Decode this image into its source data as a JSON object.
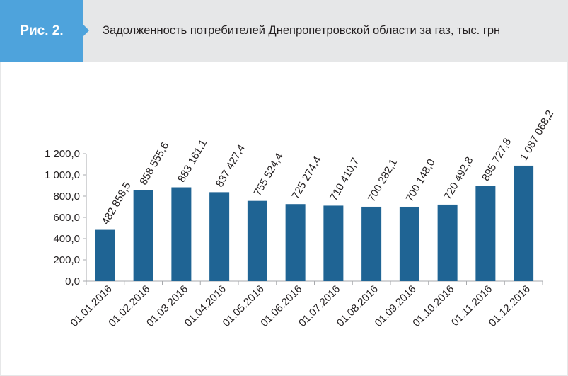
{
  "header": {
    "badge": "Рис. 2.",
    "title": "Задолженность потребителей Днепропетровской области за газ, тыс. грн"
  },
  "colors": {
    "badge": "#4ea3dc",
    "header_bg": "#e6e7e8",
    "bar": "#1f6494",
    "axis": "#a7a9ac",
    "text": "#231f20"
  },
  "chart_data": {
    "type": "bar",
    "title": "Задолженность потребителей Днепропетровской области за газ, тыс. грн",
    "xlabel": "",
    "ylabel": "",
    "ylim": [
      0,
      1200
    ],
    "yticks": [
      0,
      200,
      400,
      600,
      800,
      1000,
      1200
    ],
    "ytick_labels": [
      "0,0",
      "200,0",
      "400,0",
      "600,0",
      "800,0",
      "1 000,0",
      "1 200,0"
    ],
    "categories": [
      "01.01.2016",
      "01.02.2016",
      "01.03.2016",
      "01.04.2016",
      "01.05.2016",
      "01.06.2016",
      "01.07.2016",
      "01.08.2016",
      "01.09.2016",
      "01.10.2016",
      "01.11.2016",
      "01.12.2016"
    ],
    "values": [
      482.8585,
      858.5556,
      883.1611,
      837.4274,
      755.5244,
      725.2744,
      710.4107,
      700.2821,
      700.148,
      720.4928,
      895.7278,
      1087.0682
    ],
    "labels": [
      "482 858,5",
      "858 555,6",
      "883 161,1",
      "837 427,4",
      "755 524,4",
      "725 274,4",
      "710 410,7",
      "700 282,1",
      "700 148,0",
      "720 492,8",
      "895 727,8",
      "1 087 068,2"
    ],
    "grid": false,
    "legend": "none"
  }
}
